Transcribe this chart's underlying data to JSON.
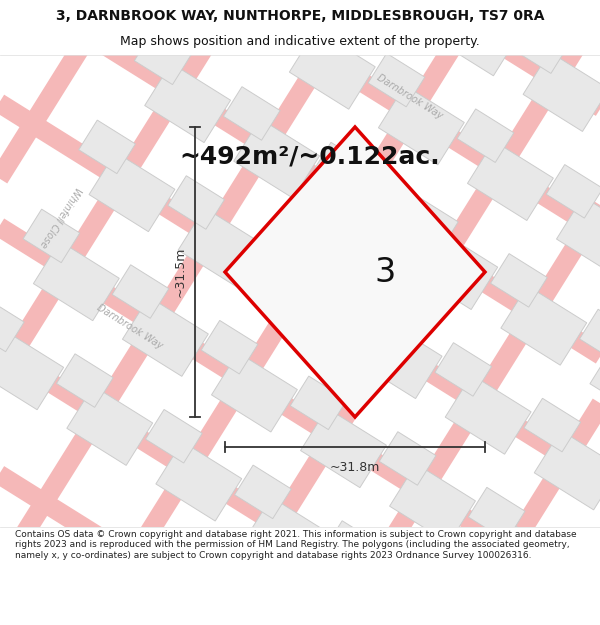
{
  "title_line1": "3, DARNBROOK WAY, NUNTHORPE, MIDDLESBROUGH, TS7 0RA",
  "title_line2": "Map shows position and indicative extent of the property.",
  "area_text": "~492m²/~0.122ac.",
  "plot_number": "3",
  "dim_width": "~31.8m",
  "dim_height": "~31.5m",
  "footer_text": "Contains OS data © Crown copyright and database right 2021. This information is subject to Crown copyright and database rights 2023 and is reproduced with the permission of HM Land Registry. The polygons (including the associated geometry, namely x, y co-ordinates) are subject to Crown copyright and database rights 2023 Ordnance Survey 100026316.",
  "bg_color": "#ffffff",
  "map_bg": "#ffffff",
  "road_outline_color": "#f5b8b8",
  "road_fill_color": "#fde8e8",
  "building_fill": "#e8e8e8",
  "building_edge": "#cccccc",
  "plot_outline_color": "#dd0000",
  "plot_fill": "#f5f5f5",
  "dim_line_color": "#333333",
  "text_color": "#111111",
  "street_label_color": "#aaaaaa",
  "title_fontsize": 10,
  "subtitle_fontsize": 9,
  "area_fontsize": 18,
  "plot_num_fontsize": 24,
  "dim_fontsize": 9,
  "footer_fontsize": 6.5
}
